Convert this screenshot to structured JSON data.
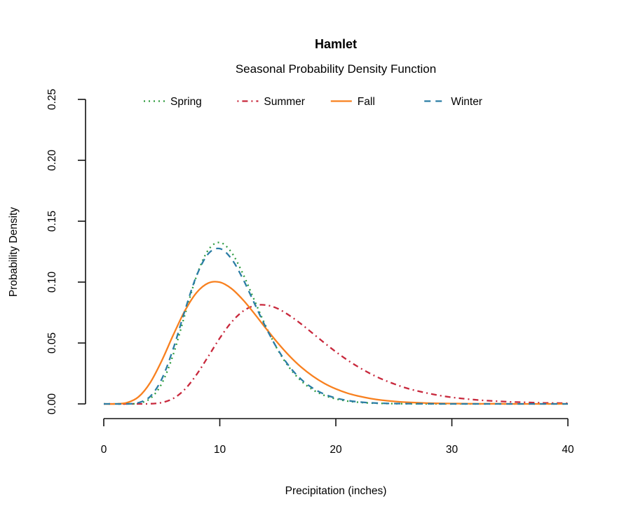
{
  "chart_data": {
    "type": "line",
    "title": "Hamlet",
    "subtitle": "Seasonal Probability Density Function",
    "xlabel": "Precipitation (inches)",
    "ylabel": "Probability Density",
    "xlim": [
      0,
      40
    ],
    "ylim": [
      0,
      0.25
    ],
    "grid": false,
    "legend_position": "top",
    "axis_color": "#111111",
    "x_ticks": [
      0,
      10,
      20,
      30,
      40
    ],
    "x_tick_labels": [
      "0",
      "10",
      "20",
      "30",
      "40"
    ],
    "y_ticks": [
      0,
      0.05,
      0.1,
      0.15,
      0.2,
      0.25
    ],
    "y_tick_labels": [
      "0.00",
      "0.05",
      "0.10",
      "0.15",
      "0.20",
      "0.25"
    ],
    "x": [
      0,
      1,
      2,
      3,
      4,
      5,
      6,
      7,
      8,
      9,
      10,
      11,
      12,
      13,
      14,
      15,
      16,
      17,
      18,
      19,
      20,
      21,
      22,
      23,
      24,
      25,
      26,
      27,
      28,
      29,
      30,
      31,
      32,
      33,
      34,
      35,
      36,
      37,
      38,
      39,
      40
    ],
    "series": [
      {
        "name": "Spring",
        "color": "#2D9B3D",
        "line_style": "dotted",
        "values": [
          0,
          0,
          0,
          0.0006,
          0.0044,
          0.0167,
          0.0409,
          0.0735,
          0.1051,
          0.1263,
          0.1325,
          0.1245,
          0.1067,
          0.0847,
          0.0631,
          0.0443,
          0.0297,
          0.019,
          0.0117,
          0.007,
          0.0041,
          0.0023,
          0.0013,
          0.0007,
          0.0004,
          0.0002,
          0.0001,
          0.0001,
          0,
          0,
          0,
          0,
          0,
          0,
          0,
          0,
          0,
          0,
          0,
          0,
          0
        ]
      },
      {
        "name": "Summer",
        "color": "#C8283C",
        "line_style": "dashdot",
        "values": [
          0,
          0,
          0,
          0,
          0.0001,
          0.0011,
          0.0045,
          0.0121,
          0.0241,
          0.0389,
          0.054,
          0.067,
          0.0761,
          0.0807,
          0.0811,
          0.0782,
          0.0726,
          0.0657,
          0.058,
          0.0502,
          0.0428,
          0.036,
          0.03,
          0.0247,
          0.0202,
          0.0165,
          0.0132,
          0.0107,
          0.0086,
          0.0068,
          0.0054,
          0.0043,
          0.0034,
          0.0027,
          0.0022,
          0.0017,
          0.0014,
          0.0011,
          0.0008,
          0.0007,
          0.0005
        ]
      },
      {
        "name": "Fall",
        "color": "#F8801F",
        "line_style": "solid",
        "values": [
          0,
          0,
          0.001,
          0.0058,
          0.0174,
          0.0355,
          0.0568,
          0.0766,
          0.0914,
          0.0992,
          0.0999,
          0.0947,
          0.0854,
          0.0739,
          0.0617,
          0.05,
          0.0394,
          0.0303,
          0.0229,
          0.0169,
          0.0123,
          0.0088,
          0.0063,
          0.0044,
          0.003,
          0.0021,
          0.0014,
          0.001,
          0.0006,
          0.0004,
          0.0003,
          0.0002,
          0.0001,
          0.0001,
          0.0001,
          0,
          0,
          0,
          0,
          0,
          0
        ]
      },
      {
        "name": "Winter",
        "color": "#2B7DA5",
        "line_style": "dashed",
        "values": [
          0,
          0,
          0,
          0.001,
          0.0061,
          0.0204,
          0.0457,
          0.0769,
          0.1053,
          0.1232,
          0.1275,
          0.1192,
          0.1025,
          0.0822,
          0.0622,
          0.0447,
          0.0307,
          0.0203,
          0.013,
          0.008,
          0.0048,
          0.0028,
          0.0016,
          0.0009,
          0.0005,
          0.0003,
          0.0002,
          0.0001,
          0.0001,
          0,
          0,
          0,
          0,
          0,
          0,
          0,
          0,
          0,
          0,
          0,
          0
        ]
      }
    ]
  }
}
